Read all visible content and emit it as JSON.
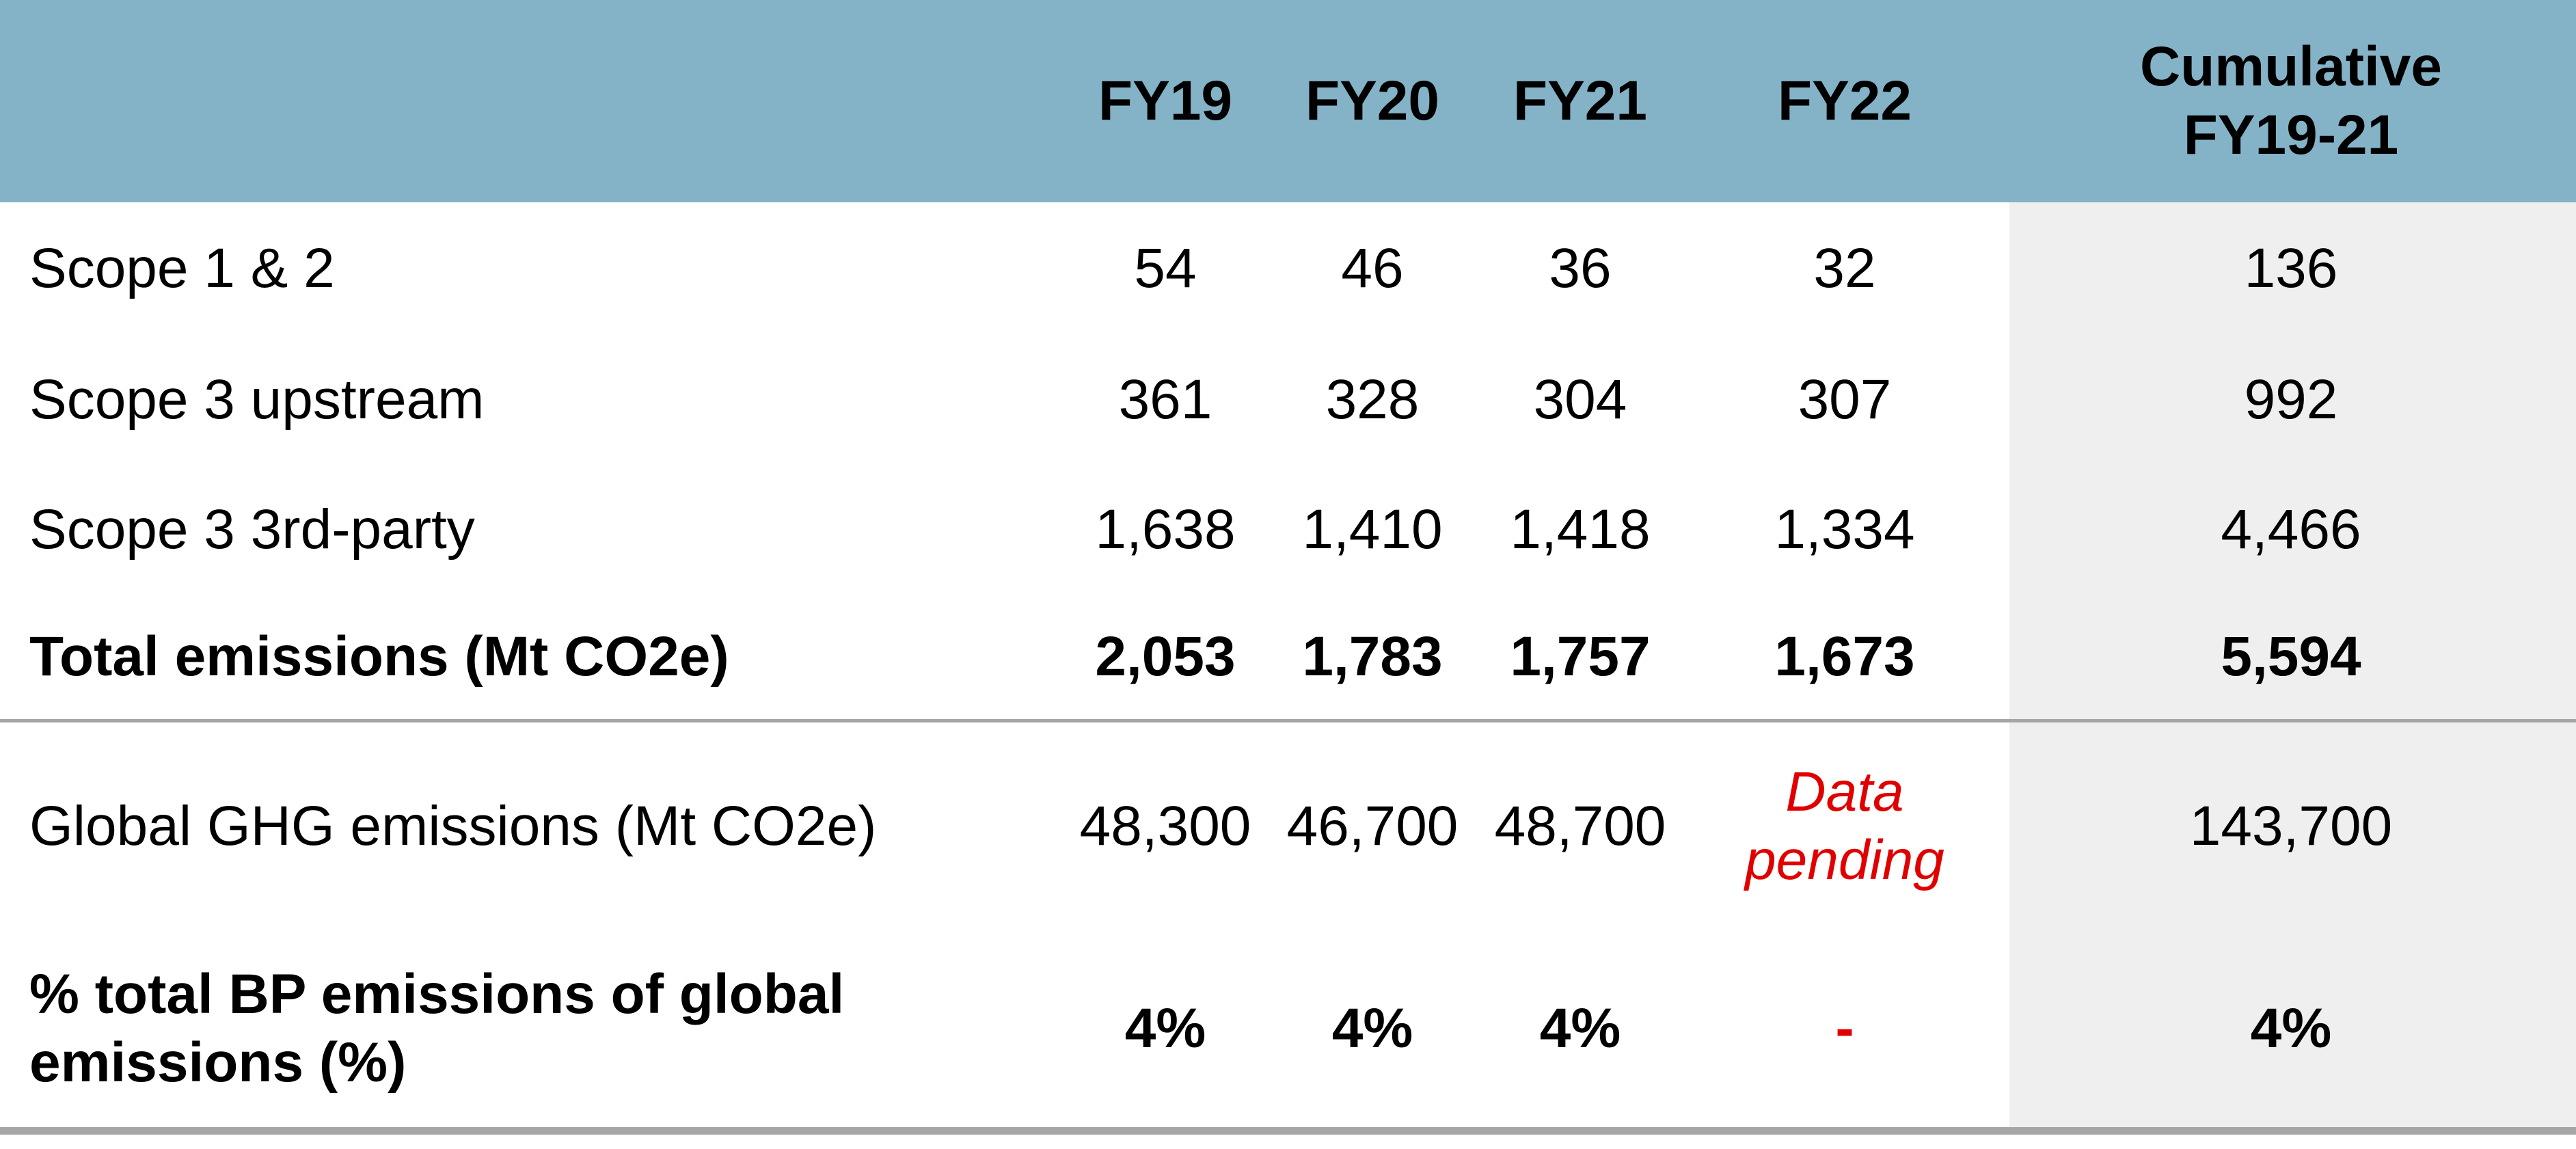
{
  "table": {
    "header": [
      "FY19",
      "FY20",
      "FY21",
      "FY22",
      "Cumulative FY19-21"
    ],
    "rows": [
      {
        "label": "Scope 1 & 2",
        "cells": [
          "54",
          "46",
          "36",
          "32",
          "136"
        ]
      },
      {
        "label": "Scope 3 upstream",
        "cells": [
          "361",
          "328",
          "304",
          "307",
          "992"
        ]
      },
      {
        "label": "Scope 3 3rd-party",
        "cells": [
          "1,638",
          "1,410",
          "1,418",
          "1,334",
          "4,466"
        ]
      },
      {
        "label": "Total emissions (Mt CO2e)",
        "cells": [
          "2,053",
          "1,783",
          "1,757",
          "1,673",
          "5,594"
        ]
      },
      {
        "label": "Global GHG emissions (Mt CO2e)",
        "cells": [
          "48,300",
          "46,700",
          "48,700",
          "Data pending",
          "143,700"
        ]
      },
      {
        "label": "% total BP emissions of global emissions (%)",
        "cells": [
          "4%",
          "4%",
          "4%",
          "-",
          "4%"
        ]
      }
    ]
  }
}
